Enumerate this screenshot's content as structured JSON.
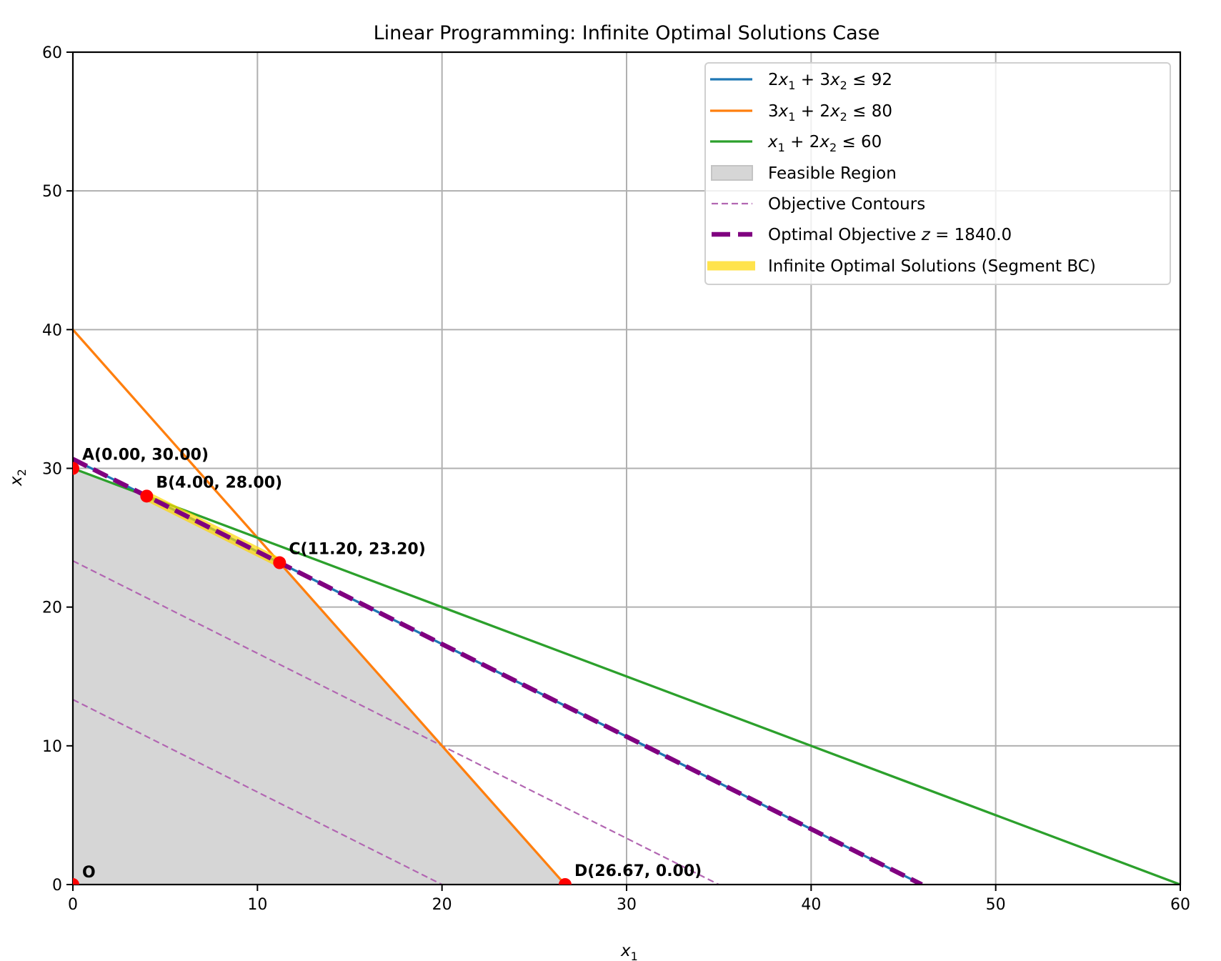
{
  "chart_data": {
    "type": "line",
    "title": "Linear Programming: Infinite Optimal Solutions Case",
    "xlabel": "x",
    "xlabel_sub": "1",
    "ylabel": "x",
    "ylabel_sub": "2",
    "xlim": [
      0,
      60
    ],
    "ylim": [
      0,
      60
    ],
    "xticks": [
      0,
      10,
      20,
      30,
      40,
      50,
      60
    ],
    "yticks": [
      0,
      10,
      20,
      30,
      40,
      50,
      60
    ],
    "xtick_labels": [
      "0",
      "10",
      "20",
      "30",
      "40",
      "50",
      "60"
    ],
    "ytick_labels": [
      "0",
      "10",
      "20",
      "30",
      "40",
      "50",
      "60"
    ],
    "grid": true,
    "legend_position": "top-right",
    "constraints": [
      {
        "name": "2x1 + 3x2 <= 92",
        "a": 2,
        "b": 3,
        "c": 92,
        "color": "#1f77b4",
        "legend": {
          "parts": [
            [
              "2",
              "x",
              "1"
            ],
            [
              " + 3",
              "x",
              "2"
            ],
            [
              " ≤ 92",
              "",
              ""
            ]
          ]
        }
      },
      {
        "name": "3x1 + 2x2 <= 80",
        "a": 3,
        "b": 2,
        "c": 80,
        "color": "#ff7f0e",
        "legend": {
          "parts": [
            [
              "3",
              "x",
              "1"
            ],
            [
              " + 2",
              "x",
              "2"
            ],
            [
              " ≤ 80",
              "",
              ""
            ]
          ]
        }
      },
      {
        "name": "x1 + 2x2 <= 60",
        "a": 1,
        "b": 2,
        "c": 60,
        "color": "#2ca02c",
        "legend": {
          "parts": [
            [
              "",
              "x",
              "1"
            ],
            [
              " + 2",
              "x",
              "2"
            ],
            [
              " ≤ 60",
              "",
              ""
            ]
          ]
        }
      }
    ],
    "feasible_region": {
      "label": "Feasible Region",
      "vertices": [
        [
          0,
          0
        ],
        [
          0,
          30
        ],
        [
          4,
          28
        ],
        [
          11.2,
          23.2
        ],
        [
          26.67,
          0
        ]
      ],
      "color": "#d6d6d6"
    },
    "objective": {
      "c1": 40,
      "c2": 60
    },
    "contours": {
      "label": "Objective Contours",
      "values": [
        800,
        1400
      ],
      "color": "#b266b2"
    },
    "optimal": {
      "label_prefix": "Optimal Objective ",
      "label_var": "z",
      "label_value": " = 1840.0",
      "z": 1840,
      "color": "#800080"
    },
    "segment": {
      "label": "Infinite Optimal Solutions (Segment BC)",
      "from": [
        4,
        28
      ],
      "to": [
        11.2,
        23.2
      ],
      "color": "#ffd700"
    },
    "points": [
      {
        "name": "O",
        "label": "O",
        "x": 0,
        "y": 0
      },
      {
        "name": "A",
        "label": "A(0.00, 30.00)",
        "x": 0,
        "y": 30
      },
      {
        "name": "B",
        "label": "B(4.00, 28.00)",
        "x": 4,
        "y": 28
      },
      {
        "name": "C",
        "label": "C(11.20, 23.20)",
        "x": 11.2,
        "y": 23.2
      },
      {
        "name": "D",
        "label": "D(26.67, 0.00)",
        "x": 26.67,
        "y": 0
      }
    ],
    "point_color": "#ff0000"
  }
}
